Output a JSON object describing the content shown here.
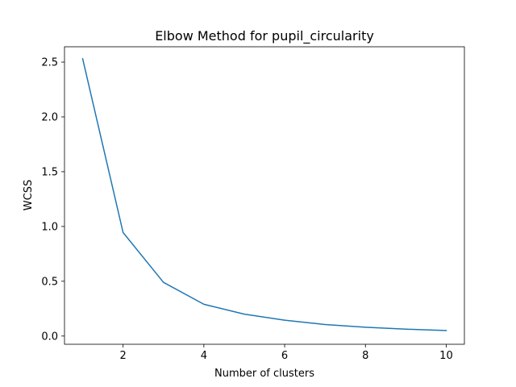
{
  "chart_data": {
    "type": "line",
    "title": "Elbow Method for pupil_circularity",
    "xlabel": "Number of clusters",
    "ylabel": "WCSS",
    "x": [
      1,
      2,
      3,
      4,
      5,
      6,
      7,
      8,
      9,
      10
    ],
    "series": [
      {
        "values": [
          2.53,
          0.945,
          0.49,
          0.29,
          0.2,
          0.145,
          0.105,
          0.08,
          0.063,
          0.05
        ],
        "color": "#1f77b4"
      }
    ],
    "xlim": [
      0.55,
      10.45
    ],
    "ylim": [
      -0.075,
      2.64
    ],
    "xticks": [
      2,
      4,
      6,
      8,
      10
    ],
    "xtick_labels": [
      "2",
      "4",
      "6",
      "8",
      "10"
    ],
    "yticks": [
      0.0,
      0.5,
      1.0,
      1.5,
      2.0,
      2.5
    ],
    "ytick_labels": [
      "0.0",
      "0.5",
      "1.0",
      "1.5",
      "2.0",
      "2.5"
    ],
    "grid": false,
    "legend": "none"
  }
}
